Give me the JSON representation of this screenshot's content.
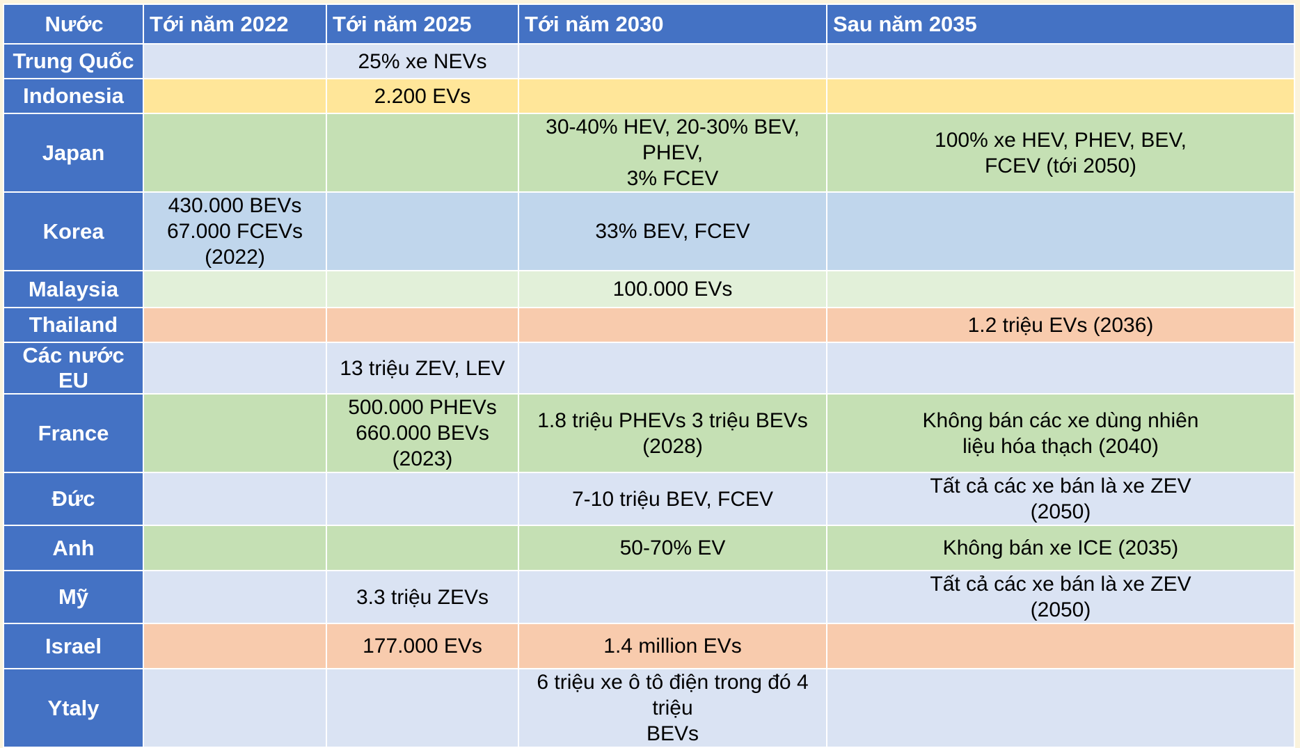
{
  "table": {
    "headers": [
      "Nước",
      "Tới năm 2022",
      "Tới năm 2025",
      "Tới năm 2030",
      "Sau năm 2035"
    ],
    "rows": [
      {
        "country": "Trung Quốc",
        "y2022": "",
        "y2025": "25% xe NEVs",
        "y2030": "",
        "after2035": ""
      },
      {
        "country": "Indonesia",
        "y2022": "",
        "y2025": "2.200 EVs",
        "y2030": "",
        "after2035": ""
      },
      {
        "country": "Japan",
        "y2022": "",
        "y2025": "",
        "y2030": "30-40% HEV, 20-30% BEV, PHEV,\n3% FCEV",
        "after2035": "100% xe HEV, PHEV, BEV,\nFCEV (tới 2050)"
      },
      {
        "country": "Korea",
        "y2022": "430.000 BEVs\n67.000 FCEVs (2022)",
        "y2025": "",
        "y2030": "33% BEV, FCEV",
        "after2035": ""
      },
      {
        "country": "Malaysia",
        "y2022": "",
        "y2025": "",
        "y2030": "100.000 EVs",
        "after2035": ""
      },
      {
        "country": "Thailand",
        "y2022": "",
        "y2025": "",
        "y2030": "",
        "after2035": "1.2 triệu EVs (2036)"
      },
      {
        "country": "Các nước EU",
        "y2022": "",
        "y2025": "13 triệu ZEV, LEV",
        "y2030": "",
        "after2035": ""
      },
      {
        "country": "France",
        "y2022": "",
        "y2025": "500.000 PHEVs\n660.000 BEVs (2023)",
        "y2030": "1.8 triệu PHEVs 3 triệu BEVs (2028)",
        "after2035": "Không bán các xe dùng nhiên\nliệu hóa thạch (2040)"
      },
      {
        "country": "Đức",
        "y2022": "",
        "y2025": "",
        "y2030": "7-10 triệu BEV, FCEV",
        "after2035": "Tất cả các xe bán là xe ZEV\n(2050)"
      },
      {
        "country": "Anh",
        "y2022": "",
        "y2025": "",
        "y2030": "50-70% EV",
        "after2035": "Không bán xe ICE (2035)"
      },
      {
        "country": "Mỹ",
        "y2022": "",
        "y2025": "3.3 triệu ZEVs",
        "y2030": "",
        "after2035": "Tất cả các xe bán là xe ZEV\n(2050)"
      },
      {
        "country": "Israel",
        "y2022": "",
        "y2025": "177.000 EVs",
        "y2030": "1.4 million EVs",
        "after2035": ""
      },
      {
        "country": "Ytaly",
        "y2022": "",
        "y2025": "",
        "y2030": "6 triệu xe ô tô điện trong đó 4 triệu\nBEVs",
        "after2035": ""
      }
    ]
  },
  "colors": {
    "header_blue": "#4472c4",
    "row_light_blue": "#dae3f3",
    "row_yellow": "#ffe699",
    "row_green": "#c5e0b4",
    "row_korea_blue": "#c0d6ec",
    "row_light_green": "#e2f0d9",
    "row_orange": "#f8cbad",
    "page_background": "#fbf3dc"
  }
}
